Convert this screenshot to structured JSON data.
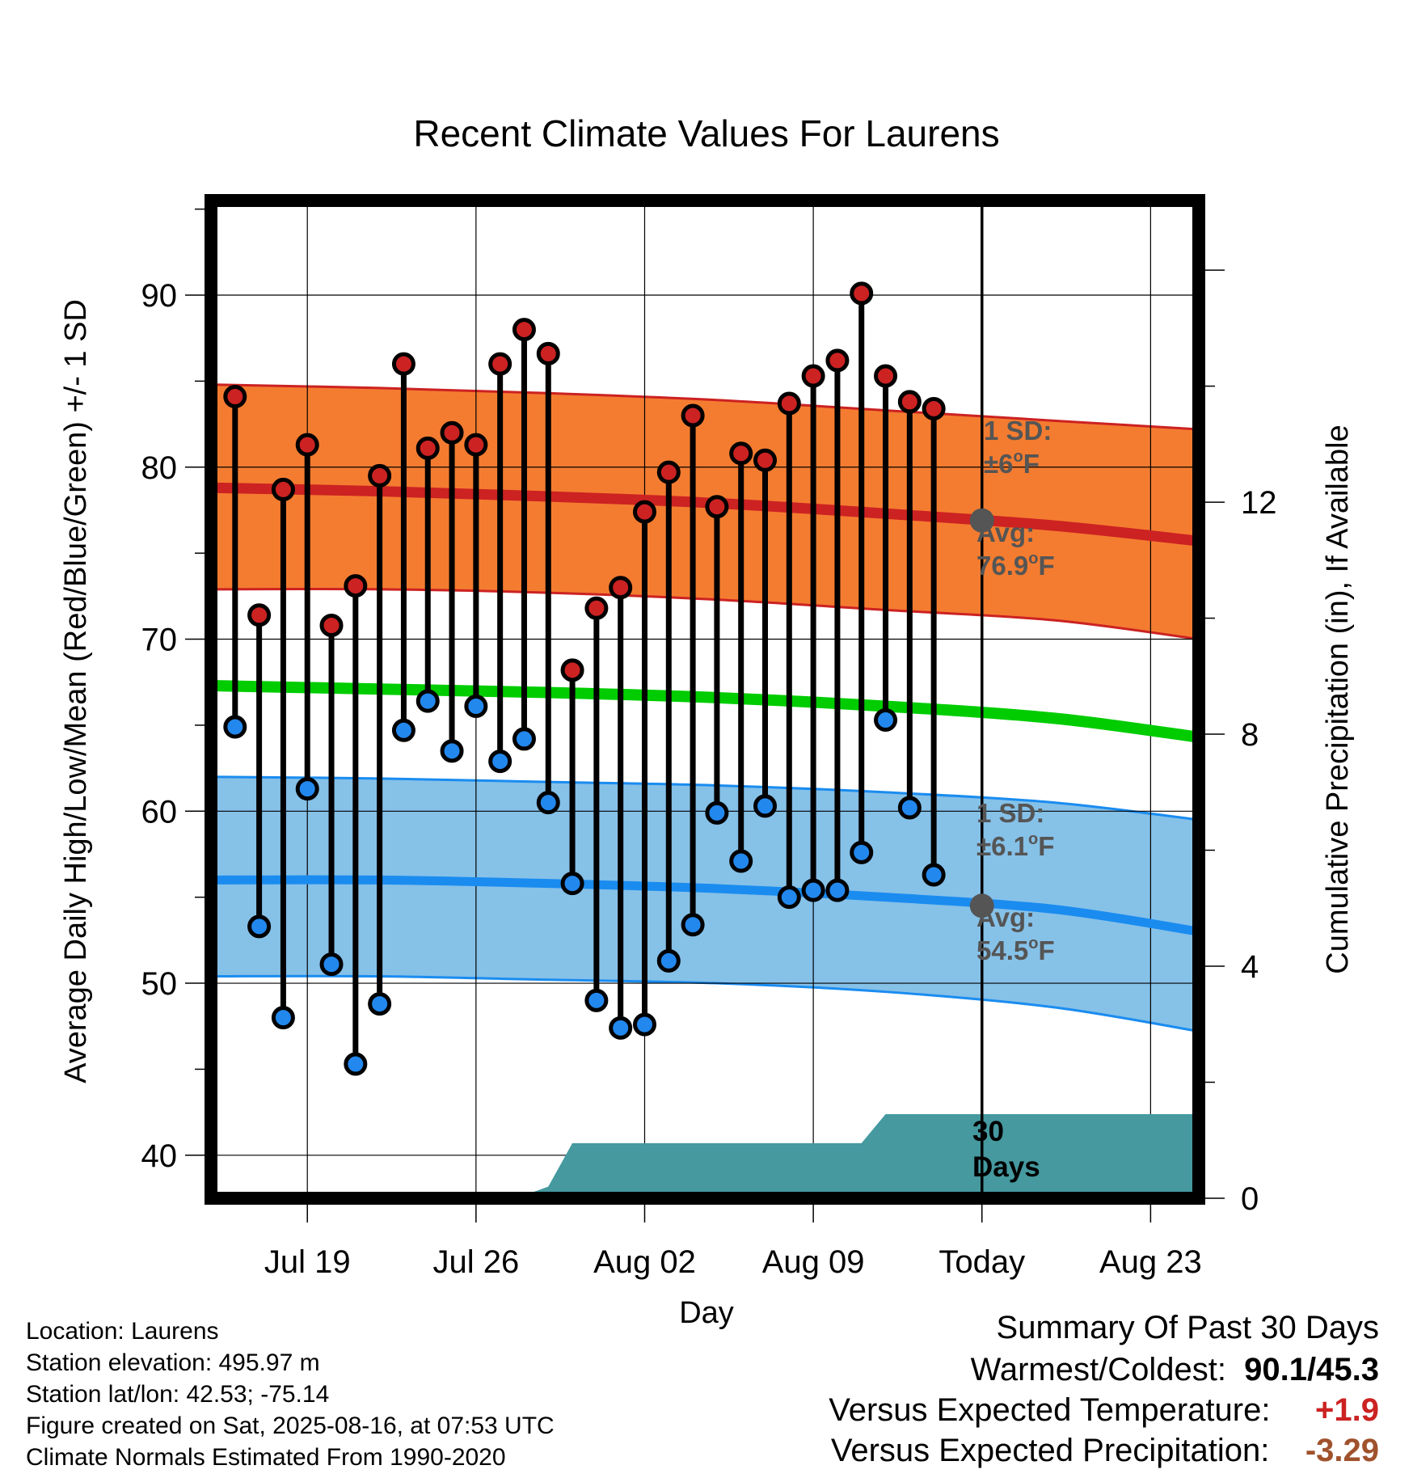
{
  "chart_data": {
    "type": "line",
    "title": "Recent Climate Values For Laurens",
    "xlabel": "Day",
    "ylabel": "Average Daily High/Low/Mean (Red/Blue/Green) +/- 1 SD",
    "y2label": "Cumulative Precipitation (in), If Available",
    "ylim": [
      37.5,
      95.5
    ],
    "y2lim": [
      0,
      17.2
    ],
    "yticks": [
      40,
      50,
      60,
      70,
      80,
      90
    ],
    "y2ticks": [
      0,
      4,
      8,
      12
    ],
    "x_range_days": [
      "2025-07-15",
      "2025-08-25"
    ],
    "xtick_dates": [
      "2025-07-19",
      "2025-07-26",
      "2025-08-02",
      "2025-08-09",
      "2025-08-16",
      "2025-08-23"
    ],
    "xtick_labels": [
      "Jul 19",
      "Jul 26",
      "Aug 02",
      "Aug 09",
      "Today",
      "Aug 23"
    ],
    "grid": true,
    "today": "2025-08-16",
    "colors": {
      "high_band": "#f47c30",
      "high_line": "#cc2222",
      "low_band": "#86c1e8",
      "low_line": "#1a8cf0",
      "mean_line": "#00cc00",
      "precip": "#45999f",
      "high_dot": "#cc2222",
      "low_dot": "#2288ee",
      "today_dot": "#555555",
      "warm_anomaly": "#cc2222",
      "precip_anomaly": "#a0522d"
    },
    "normals": {
      "dates": [
        "2025-07-15",
        "2025-07-22",
        "2025-07-29",
        "2025-08-05",
        "2025-08-12",
        "2025-08-19",
        "2025-08-25"
      ],
      "high_avg": [
        78.8,
        78.6,
        78.3,
        77.9,
        77.3,
        76.6,
        75.7
      ],
      "high_upper": [
        84.8,
        84.6,
        84.3,
        83.9,
        83.3,
        82.7,
        82.2
      ],
      "high_lower": [
        72.9,
        72.9,
        72.7,
        72.3,
        71.7,
        71.1,
        70.0
      ],
      "mean_avg": [
        67.3,
        67.1,
        66.9,
        66.6,
        66.1,
        65.4,
        64.3
      ],
      "low_avg": [
        56.0,
        56.0,
        55.8,
        55.5,
        55.0,
        54.3,
        53.0
      ],
      "low_upper": [
        62.0,
        61.9,
        61.7,
        61.5,
        61.1,
        60.5,
        59.5
      ],
      "low_lower": [
        50.4,
        50.4,
        50.2,
        50.0,
        49.5,
        48.6,
        47.2
      ]
    },
    "series": [
      {
        "name": "High",
        "dates": [
          "2025-07-16",
          "2025-07-17",
          "2025-07-18",
          "2025-07-19",
          "2025-07-20",
          "2025-07-21",
          "2025-07-22",
          "2025-07-23",
          "2025-07-24",
          "2025-07-25",
          "2025-07-26",
          "2025-07-27",
          "2025-07-28",
          "2025-07-29",
          "2025-07-30",
          "2025-07-31",
          "2025-08-01",
          "2025-08-02",
          "2025-08-03",
          "2025-08-04",
          "2025-08-05",
          "2025-08-06",
          "2025-08-07",
          "2025-08-08",
          "2025-08-09",
          "2025-08-10",
          "2025-08-11",
          "2025-08-12",
          "2025-08-13",
          "2025-08-14",
          "2025-08-15"
        ],
        "values": [
          84.1,
          71.4,
          78.7,
          81.3,
          70.8,
          73.1,
          79.5,
          86.0,
          81.1,
          82.0,
          81.3,
          86.0,
          88.0,
          86.6,
          68.2,
          71.8,
          73.0,
          77.4,
          79.7,
          83.0,
          77.7,
          80.8,
          80.4,
          83.7,
          85.3,
          86.2,
          90.1,
          85.3,
          83.8,
          83.4,
          null
        ]
      },
      {
        "name": "Low",
        "dates": [
          "2025-07-16",
          "2025-07-17",
          "2025-07-18",
          "2025-07-19",
          "2025-07-20",
          "2025-07-21",
          "2025-07-22",
          "2025-07-23",
          "2025-07-24",
          "2025-07-25",
          "2025-07-26",
          "2025-07-27",
          "2025-07-28",
          "2025-07-29",
          "2025-07-30",
          "2025-07-31",
          "2025-08-01",
          "2025-08-02",
          "2025-08-03",
          "2025-08-04",
          "2025-08-05",
          "2025-08-06",
          "2025-08-07",
          "2025-08-08",
          "2025-08-09",
          "2025-08-10",
          "2025-08-11",
          "2025-08-12",
          "2025-08-13",
          "2025-08-14",
          "2025-08-15"
        ],
        "values": [
          64.9,
          53.3,
          48.0,
          61.3,
          51.1,
          45.3,
          48.8,
          64.7,
          66.4,
          63.5,
          66.1,
          62.9,
          64.2,
          60.5,
          55.8,
          49.0,
          47.4,
          47.6,
          51.3,
          53.4,
          59.9,
          57.1,
          60.3,
          55.0,
          55.4,
          55.4,
          57.6,
          65.3,
          60.2,
          56.3,
          null
        ]
      },
      {
        "name": "Cumulative Precipitation",
        "dates": [
          "2025-07-15",
          "2025-07-25",
          "2025-07-26",
          "2025-07-28",
          "2025-07-29",
          "2025-07-30",
          "2025-08-01",
          "2025-08-09",
          "2025-08-10",
          "2025-08-11",
          "2025-08-12",
          "2025-08-25"
        ],
        "values": [
          0.0,
          0.0,
          0.05,
          0.05,
          0.2,
          0.95,
          0.95,
          0.95,
          0.95,
          0.95,
          1.45,
          1.45
        ]
      }
    ],
    "annotations": {
      "high_sd_label": "1 SD:",
      "high_sd_value": "±6",
      "high_avg_label": "Avg:",
      "high_avg_value": "76.9",
      "low_sd_label": "1 SD:",
      "low_sd_value": "±6.1",
      "low_avg_label": "Avg:",
      "low_avg_value": "54.5",
      "degree_mark": "o",
      "unit": "F",
      "high_today_avg": 76.9,
      "low_today_avg": 54.5,
      "days_number": "30",
      "days_word": "Days"
    }
  },
  "info": {
    "location": "Location: Laurens",
    "elevation": "Station elevation: 495.97 m",
    "latlon": "Station lat/lon: 42.53; -75.14",
    "created": "Figure created on Sat, 2025-08-16, at 07:53 UTC",
    "normals": "Climate Normals Estimated From 1990-2020"
  },
  "summary": {
    "title": "Summary Of Past 30 Days",
    "warmest_coldest_label": "Warmest/Coldest:",
    "warmest_coldest_value": "90.1/45.3",
    "temp_label": "Versus Expected Temperature:",
    "temp_value": "+1.9",
    "precip_label": "Versus Expected Precipitation:",
    "precip_value": "-3.29"
  }
}
